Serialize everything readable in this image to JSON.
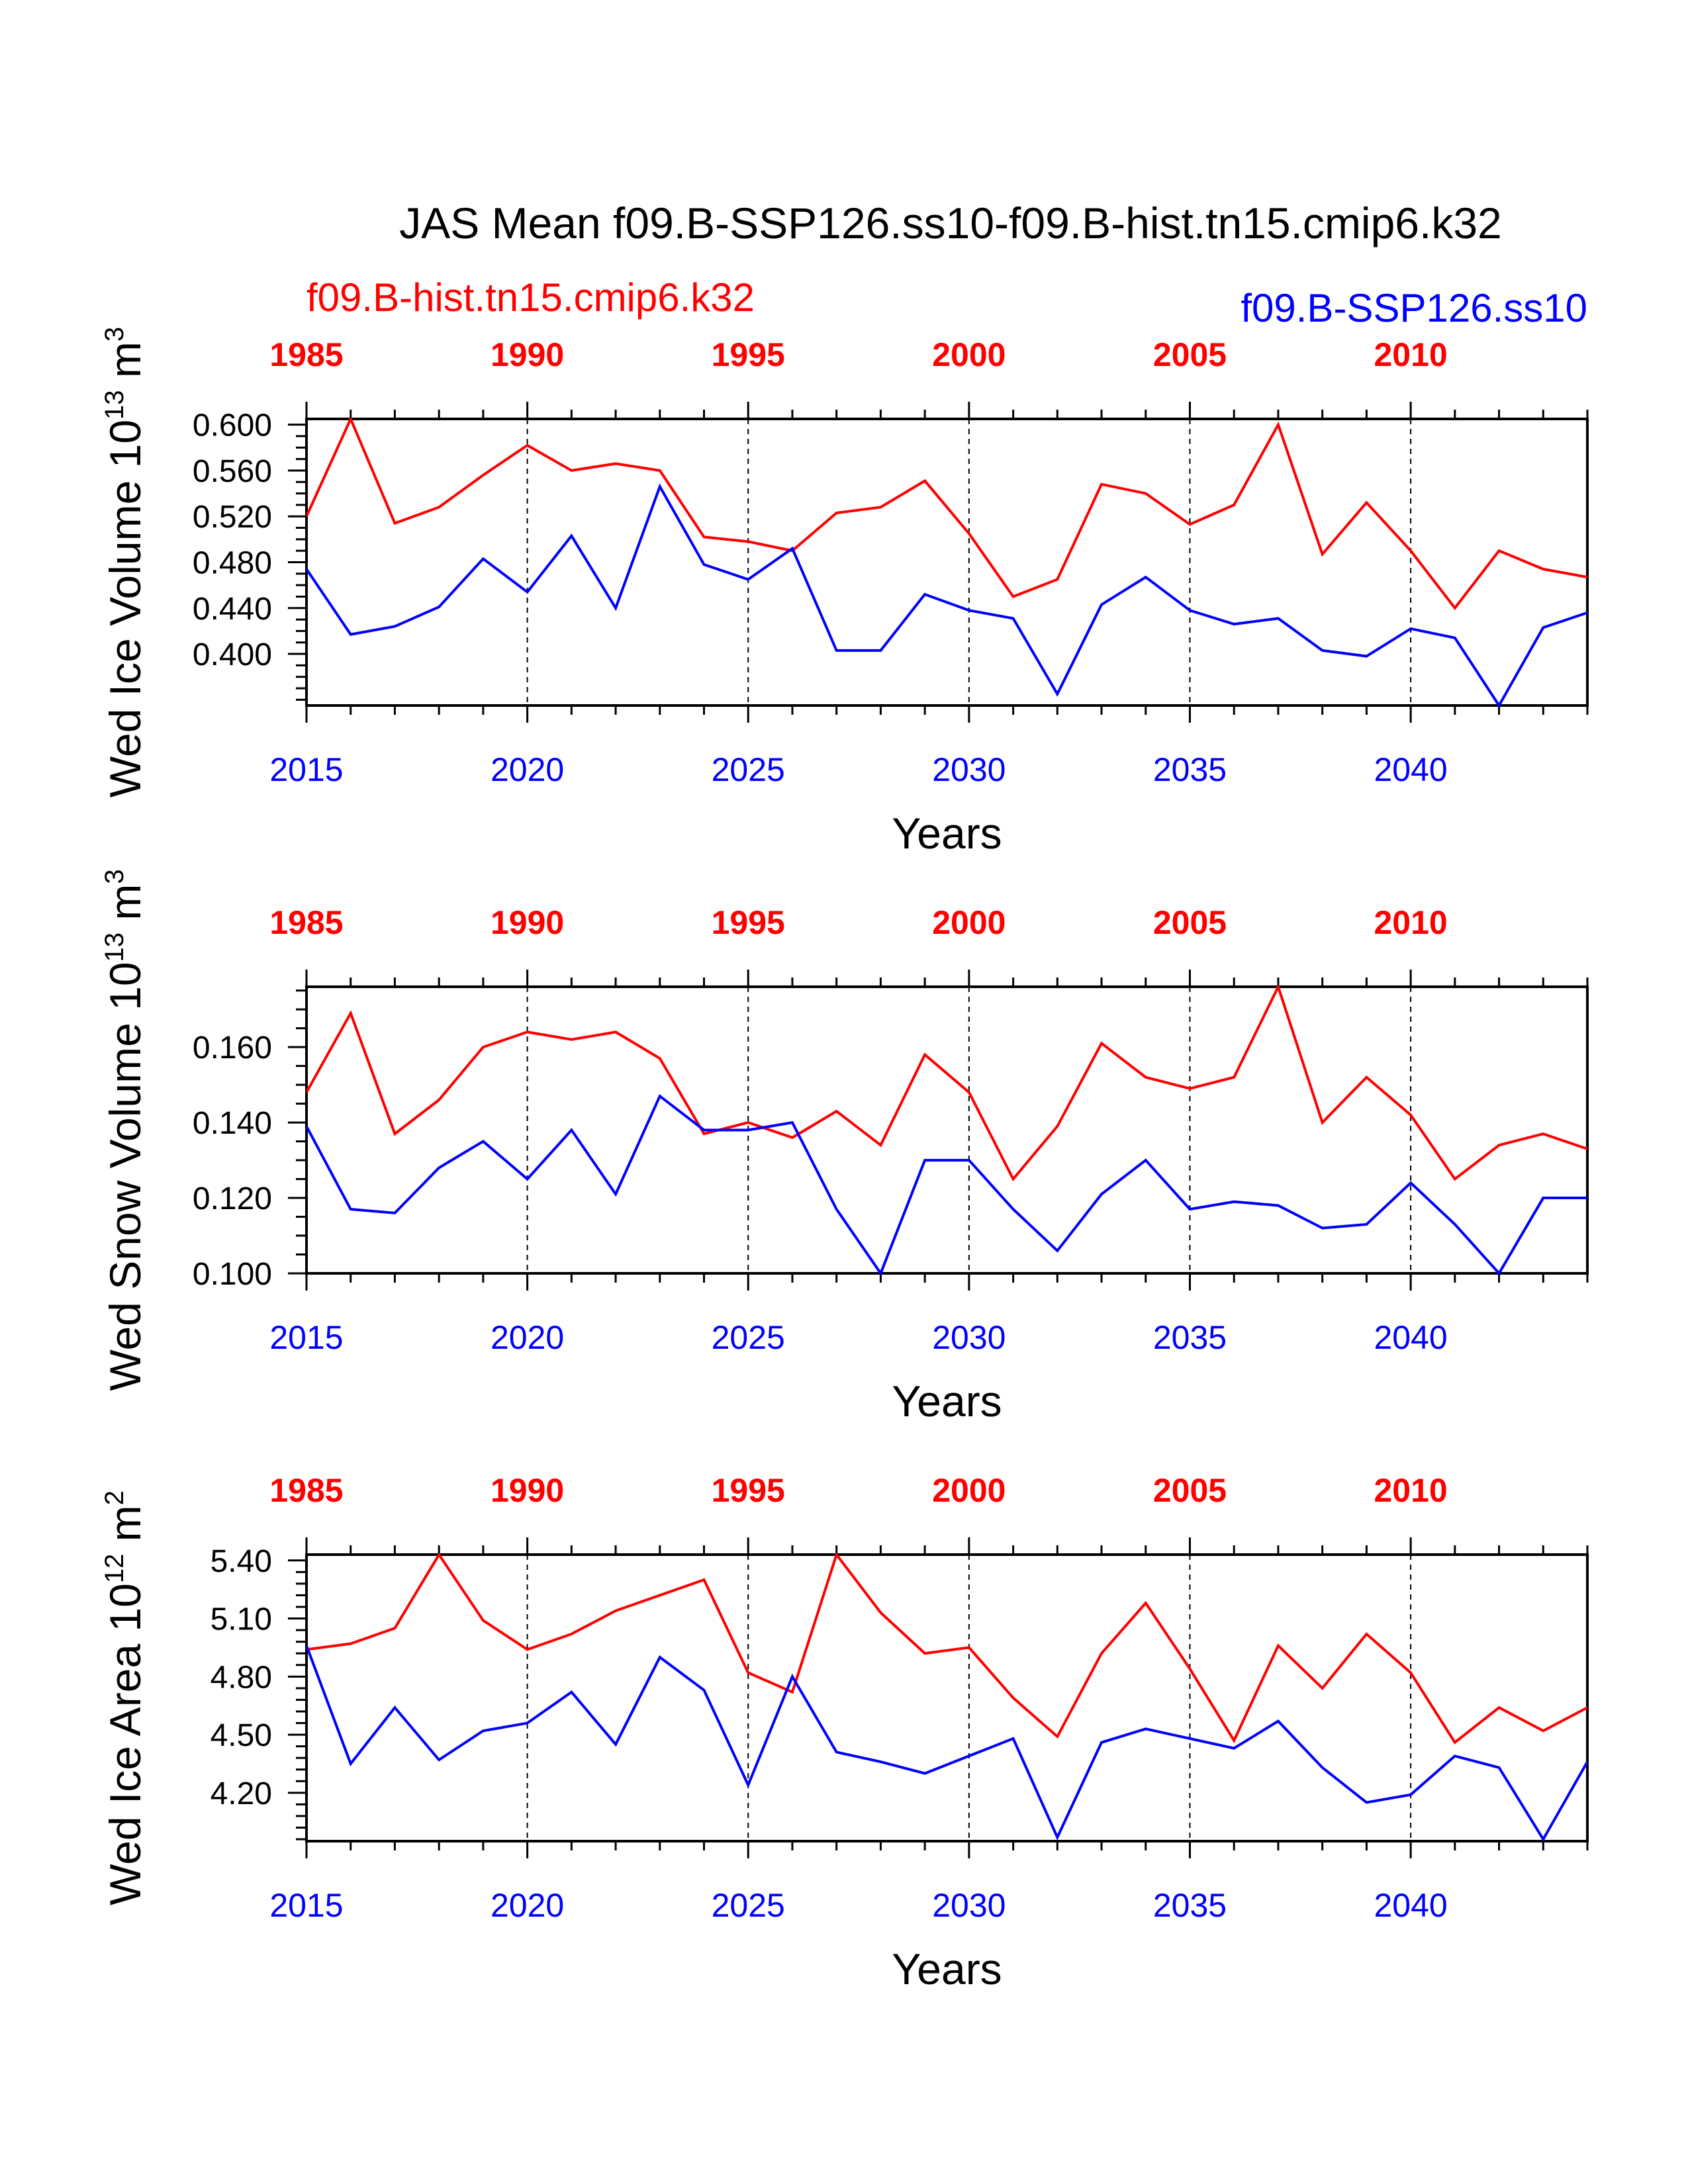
{
  "title": "JAS Mean f09.B-SSP126.ss10-f09.B-hist.tn15.cmip6.k32",
  "legend_hist": "f09.B-hist.tn15.cmip6.k32",
  "legend_ssp": "f09.B-SSP126.ss10",
  "colors": {
    "hist": "#ff0000",
    "ssp": "#0000ff",
    "axis": "#000000"
  },
  "chart_data": [
    {
      "type": "line",
      "ylabel": "Wed Ice Volume 10",
      "ylabel_exp": "13",
      "ylabel_unit": " m",
      "ylabel_unit_exp": "3",
      "xlabel": "Years",
      "ylim": [
        0.355,
        0.605
      ],
      "yticks": [
        0.4,
        0.44,
        0.48,
        0.52,
        0.56,
        0.6
      ],
      "ytick_labels": [
        "0.400",
        "0.440",
        "0.480",
        "0.520",
        "0.560",
        "0.600"
      ],
      "yminor_step": 0.01,
      "x_bottom": [
        2015,
        2016,
        2017,
        2018,
        2019,
        2020,
        2021,
        2022,
        2023,
        2024,
        2025,
        2026,
        2027,
        2028,
        2029,
        2030,
        2031,
        2032,
        2033,
        2034,
        2035,
        2036,
        2037,
        2038,
        2039,
        2040,
        2041,
        2042,
        2043,
        2044
      ],
      "x_top": [
        1985,
        1986,
        1987,
        1988,
        1989,
        1990,
        1991,
        1992,
        1993,
        1994,
        1995,
        1996,
        1997,
        1998,
        1999,
        2000,
        2001,
        2002,
        2003,
        2004,
        2005,
        2006,
        2007,
        2008,
        2009,
        2010,
        2011,
        2012,
        2013,
        2014
      ],
      "bottom_tick_labels": [
        "2015",
        "2020",
        "2025",
        "2030",
        "2035",
        "2040"
      ],
      "top_tick_labels": [
        "1985",
        "1990",
        "1995",
        "2000",
        "2005",
        "2010"
      ],
      "series": [
        {
          "name": "f09.B-hist.tn15.cmip6.k32",
          "color": "#ff0000",
          "values": [
            0.52,
            0.605,
            0.514,
            0.528,
            0.556,
            0.582,
            0.56,
            0.566,
            0.56,
            0.502,
            0.498,
            0.49,
            0.523,
            0.528,
            0.551,
            0.505,
            0.45,
            0.465,
            0.548,
            0.54,
            0.513,
            0.53,
            0.6,
            0.487,
            0.532,
            0.49,
            0.44,
            0.49,
            0.474,
            0.467
          ]
        },
        {
          "name": "f09.B-SSP126.ss10",
          "color": "#0000ff",
          "values": [
            0.474,
            0.417,
            0.424,
            0.441,
            0.483,
            0.454,
            0.503,
            0.44,
            0.546,
            0.478,
            0.465,
            0.492,
            0.403,
            0.403,
            0.452,
            0.438,
            0.431,
            0.365,
            0.443,
            0.467,
            0.438,
            0.426,
            0.431,
            0.403,
            0.398,
            0.422,
            0.414,
            0.355,
            0.423,
            0.436
          ]
        }
      ]
    },
    {
      "type": "line",
      "ylabel": "Wed Snow Volume 10",
      "ylabel_exp": "13",
      "ylabel_unit": " m",
      "ylabel_unit_exp": "3",
      "xlabel": "Years",
      "ylim": [
        0.1,
        0.176
      ],
      "yticks": [
        0.1,
        0.12,
        0.14,
        0.16
      ],
      "ytick_labels": [
        "0.100",
        "0.120",
        "0.140",
        "0.160"
      ],
      "yminor_step": 0.005,
      "x_bottom": [
        2015,
        2016,
        2017,
        2018,
        2019,
        2020,
        2021,
        2022,
        2023,
        2024,
        2025,
        2026,
        2027,
        2028,
        2029,
        2030,
        2031,
        2032,
        2033,
        2034,
        2035,
        2036,
        2037,
        2038,
        2039,
        2040,
        2041,
        2042,
        2043,
        2044
      ],
      "x_top": [
        1985,
        1986,
        1987,
        1988,
        1989,
        1990,
        1991,
        1992,
        1993,
        1994,
        1995,
        1996,
        1997,
        1998,
        1999,
        2000,
        2001,
        2002,
        2003,
        2004,
        2005,
        2006,
        2007,
        2008,
        2009,
        2010,
        2011,
        2012,
        2013,
        2014
      ],
      "bottom_tick_labels": [
        "2015",
        "2020",
        "2025",
        "2030",
        "2035",
        "2040"
      ],
      "top_tick_labels": [
        "1985",
        "1990",
        "1995",
        "2000",
        "2005",
        "2010"
      ],
      "series": [
        {
          "name": "f09.B-hist.tn15.cmip6.k32",
          "color": "#ff0000",
          "values": [
            0.148,
            0.169,
            0.137,
            0.146,
            0.16,
            0.164,
            0.162,
            0.164,
            0.157,
            0.137,
            0.14,
            0.136,
            0.143,
            0.134,
            0.158,
            0.148,
            0.125,
            0.139,
            0.161,
            0.152,
            0.149,
            0.152,
            0.176,
            0.14,
            0.152,
            0.142,
            0.125,
            0.134,
            0.137,
            0.133
          ]
        },
        {
          "name": "f09.B-SSP126.ss10",
          "color": "#0000ff",
          "values": [
            0.139,
            0.117,
            0.116,
            0.128,
            0.135,
            0.125,
            0.138,
            0.121,
            0.147,
            0.138,
            0.138,
            0.14,
            0.117,
            0.1,
            0.13,
            0.13,
            0.117,
            0.106,
            0.121,
            0.13,
            0.117,
            0.119,
            0.118,
            0.112,
            0.113,
            0.124,
            0.113,
            0.1,
            0.12,
            0.12
          ]
        }
      ]
    },
    {
      "type": "line",
      "ylabel": "Wed Ice Area 10",
      "ylabel_exp": "12",
      "ylabel_unit": " m",
      "ylabel_unit_exp": "2",
      "xlabel": "Years",
      "ylim": [
        3.95,
        5.43
      ],
      "yticks": [
        4.2,
        4.5,
        4.8,
        5.1,
        5.4
      ],
      "ytick_labels": [
        "4.20",
        "4.50",
        "4.80",
        "5.10",
        "5.40"
      ],
      "yminor_step": 0.06,
      "x_bottom": [
        2015,
        2016,
        2017,
        2018,
        2019,
        2020,
        2021,
        2022,
        2023,
        2024,
        2025,
        2026,
        2027,
        2028,
        2029,
        2030,
        2031,
        2032,
        2033,
        2034,
        2035,
        2036,
        2037,
        2038,
        2039,
        2040,
        2041,
        2042,
        2043,
        2044
      ],
      "x_top": [
        1985,
        1986,
        1987,
        1988,
        1989,
        1990,
        1991,
        1992,
        1993,
        1994,
        1995,
        1996,
        1997,
        1998,
        1999,
        2000,
        2001,
        2002,
        2003,
        2004,
        2005,
        2006,
        2007,
        2008,
        2009,
        2010,
        2011,
        2012,
        2013,
        2014
      ],
      "bottom_tick_labels": [
        "2015",
        "2020",
        "2025",
        "2030",
        "2035",
        "2040"
      ],
      "top_tick_labels": [
        "1985",
        "1990",
        "1995",
        "2000",
        "2005",
        "2010"
      ],
      "series": [
        {
          "name": "f09.B-hist.tn15.cmip6.k32",
          "color": "#ff0000",
          "values": [
            4.94,
            4.97,
            5.05,
            5.43,
            5.09,
            4.94,
            5.02,
            5.14,
            5.22,
            5.3,
            4.82,
            4.72,
            5.43,
            5.13,
            4.92,
            4.95,
            4.69,
            4.49,
            4.92,
            5.18,
            4.84,
            4.47,
            4.96,
            4.74,
            5.02,
            4.82,
            4.46,
            4.64,
            4.52,
            4.64
          ]
        },
        {
          "name": "f09.B-SSP126.ss10",
          "color": "#0000ff",
          "values": [
            4.96,
            4.35,
            4.64,
            4.37,
            4.52,
            4.56,
            4.72,
            4.45,
            4.9,
            4.73,
            4.24,
            4.8,
            4.41,
            4.36,
            4.3,
            4.39,
            4.48,
            3.97,
            4.46,
            4.53,
            4.48,
            4.43,
            4.57,
            4.33,
            4.15,
            4.19,
            4.39,
            4.33,
            3.96,
            4.36
          ]
        }
      ]
    }
  ]
}
